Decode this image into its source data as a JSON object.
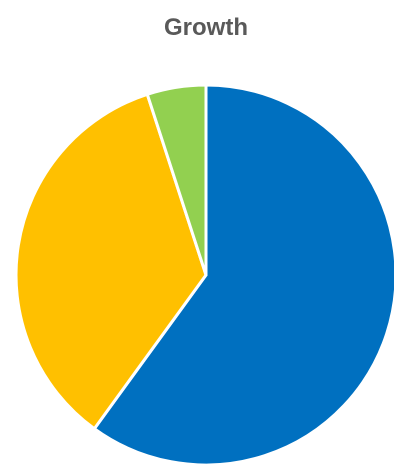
{
  "chart_data": {
    "type": "pie",
    "title": "Growth",
    "values": [
      60,
      35,
      5
    ],
    "colors": [
      "#0070C0",
      "#FFC000",
      "#92D050"
    ],
    "start_angle_deg": 0,
    "direction": "clockwise",
    "slice_border_color": "#ffffff"
  }
}
